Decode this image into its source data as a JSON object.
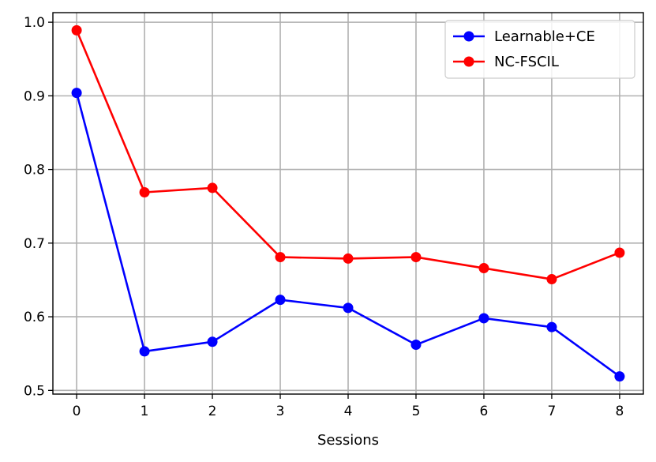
{
  "chart_data": {
    "type": "line",
    "title": "",
    "xlabel": "Sessions",
    "ylabel": "",
    "x": [
      0,
      1,
      2,
      3,
      4,
      5,
      6,
      7,
      8
    ],
    "xlim": [
      -0.35,
      8.35
    ],
    "ylim": [
      0.495,
      1.013
    ],
    "xticks": [
      "0",
      "1",
      "2",
      "3",
      "4",
      "5",
      "6",
      "7",
      "8"
    ],
    "yticks": [
      "0.5",
      "0.6",
      "0.7",
      "0.8",
      "0.9",
      "1.0"
    ],
    "grid": true,
    "legend_position": "top-right",
    "series": [
      {
        "name": "Learnable+CE",
        "color": "#0000ff",
        "marker": "circle",
        "values": [
          0.904,
          0.553,
          0.566,
          0.623,
          0.612,
          0.562,
          0.598,
          0.586,
          0.519
        ]
      },
      {
        "name": "NC-FSCIL",
        "color": "#ff0000",
        "marker": "circle",
        "values": [
          0.989,
          0.769,
          0.775,
          0.681,
          0.679,
          0.681,
          0.666,
          0.651,
          0.687
        ]
      }
    ]
  }
}
